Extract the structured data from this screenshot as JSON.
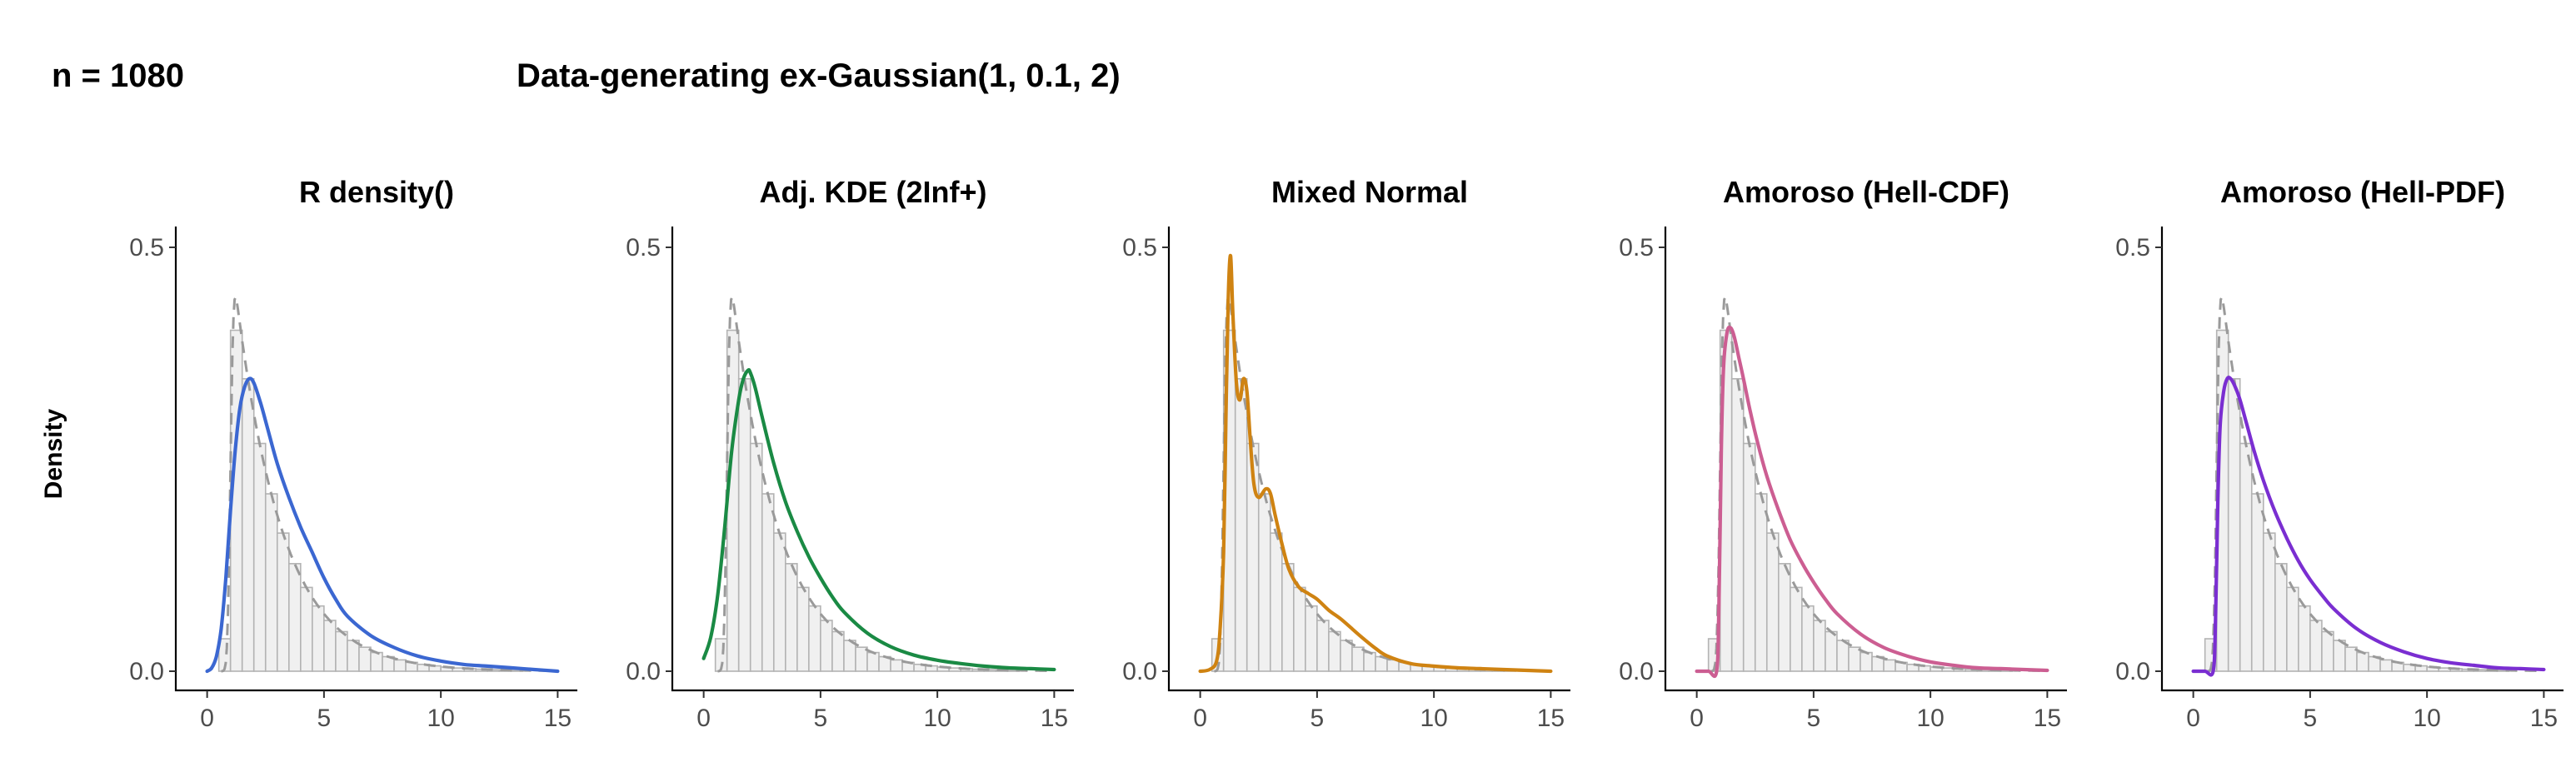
{
  "header": {
    "sample_size": "n = 1080",
    "generating_model": "Data-generating ex-Gaussian(1, 0.1, 2)"
  },
  "ylabel": "Density",
  "chart_data": [
    {
      "type": "line",
      "title": "R density()",
      "color": "#3b67d1",
      "method": "kde",
      "xlim": [
        0,
        15
      ],
      "ylim": [
        0,
        0.5
      ],
      "xticks": [
        "0",
        "5",
        "10",
        "15"
      ],
      "yticks": [
        "0.0",
        "0.5"
      ],
      "series": [
        {
          "name": "true ex-Gaussian density",
          "style": "dashed"
        },
        {
          "name": "estimate",
          "style": "solid",
          "x": [
            0,
            0.2,
            0.4,
            0.6,
            0.8,
            1.0,
            1.2,
            1.4,
            1.6,
            1.8,
            2.0,
            2.3,
            2.6,
            3.0,
            3.5,
            4.0,
            4.5,
            5.0,
            5.5,
            6.0,
            7.0,
            8.0,
            9.0,
            10.0,
            11.0,
            12.0,
            13.0,
            14.0,
            15.0
          ],
          "y": [
            0,
            0.004,
            0.018,
            0.05,
            0.11,
            0.19,
            0.26,
            0.31,
            0.335,
            0.345,
            0.34,
            0.315,
            0.285,
            0.245,
            0.205,
            0.17,
            0.14,
            0.11,
            0.085,
            0.065,
            0.042,
            0.028,
            0.018,
            0.012,
            0.008,
            0.006,
            0.004,
            0.002,
            0.0
          ]
        }
      ]
    },
    {
      "type": "line",
      "title": "Adj. KDE (2Inf+)",
      "color": "#1a8a44",
      "method": "kde",
      "xlim": [
        0,
        15
      ],
      "ylim": [
        0,
        0.5
      ],
      "xticks": [
        "0",
        "5",
        "10",
        "15"
      ],
      "yticks": [
        "0.0",
        "0.5"
      ],
      "series": [
        {
          "name": "true ex-Gaussian density",
          "style": "dashed"
        },
        {
          "name": "estimate",
          "style": "solid",
          "x": [
            0,
            0.3,
            0.6,
            0.9,
            1.2,
            1.5,
            1.7,
            1.9,
            2.0,
            2.2,
            2.5,
            3.0,
            3.5,
            4.0,
            4.5,
            5.0,
            5.5,
            6.0,
            7.0,
            8.0,
            9.0,
            10.0,
            11.0,
            12.0,
            13.0,
            14.0,
            15.0
          ],
          "y": [
            0.015,
            0.04,
            0.09,
            0.17,
            0.26,
            0.32,
            0.345,
            0.355,
            0.352,
            0.335,
            0.3,
            0.245,
            0.2,
            0.165,
            0.135,
            0.11,
            0.088,
            0.07,
            0.045,
            0.029,
            0.019,
            0.013,
            0.009,
            0.006,
            0.004,
            0.003,
            0.002
          ]
        }
      ]
    },
    {
      "type": "line",
      "title": "Mixed Normal",
      "color": "#cf8312",
      "method": "mixture",
      "xlim": [
        0,
        15
      ],
      "ylim": [
        0,
        0.5
      ],
      "xticks": [
        "0",
        "5",
        "10",
        "15"
      ],
      "yticks": [
        "0.0",
        "0.5"
      ],
      "series": [
        {
          "name": "true ex-Gaussian density",
          "style": "dashed"
        },
        {
          "name": "estimate",
          "style": "solid",
          "x": [
            0,
            0.4,
            0.7,
            0.85,
            1.0,
            1.1,
            1.2,
            1.3,
            1.4,
            1.55,
            1.7,
            1.85,
            2.0,
            2.15,
            2.3,
            2.5,
            2.8,
            3.0,
            3.2,
            3.5,
            3.8,
            4.2,
            4.6,
            5.0,
            5.5,
            6.0,
            6.5,
            7.0,
            7.5,
            8.0,
            9.0,
            10.0,
            11.0,
            12.0,
            13.0,
            14.0,
            15.0
          ],
          "y": [
            0.0,
            0.002,
            0.012,
            0.05,
            0.14,
            0.3,
            0.44,
            0.49,
            0.42,
            0.34,
            0.32,
            0.345,
            0.33,
            0.27,
            0.22,
            0.205,
            0.215,
            0.21,
            0.185,
            0.15,
            0.12,
            0.1,
            0.092,
            0.085,
            0.072,
            0.062,
            0.05,
            0.038,
            0.027,
            0.018,
            0.009,
            0.006,
            0.004,
            0.003,
            0.002,
            0.001,
            0.0
          ]
        }
      ]
    },
    {
      "type": "line",
      "title": "Amoroso (Hell-CDF)",
      "color": "#cc5e92",
      "method": "amoroso",
      "xlim": [
        0,
        15
      ],
      "ylim": [
        0,
        0.5
      ],
      "xticks": [
        "0",
        "5",
        "10",
        "15"
      ],
      "yticks": [
        "0.0",
        "0.5"
      ],
      "series": [
        {
          "name": "true ex-Gaussian density",
          "style": "dashed"
        },
        {
          "name": "estimate",
          "style": "solid",
          "x": [
            0,
            0.5,
            0.85,
            0.95,
            1.05,
            1.15,
            1.3,
            1.45,
            1.6,
            1.8,
            2.0,
            2.3,
            2.6,
            3.0,
            3.5,
            4.0,
            4.5,
            5.0,
            5.5,
            6.0,
            7.0,
            8.0,
            9.0,
            10.0,
            11.0,
            12.0,
            13.0,
            14.0,
            15.0
          ],
          "y": [
            0,
            0,
            0,
            0.08,
            0.26,
            0.36,
            0.4,
            0.405,
            0.395,
            0.37,
            0.345,
            0.305,
            0.27,
            0.23,
            0.19,
            0.155,
            0.128,
            0.105,
            0.085,
            0.068,
            0.044,
            0.028,
            0.018,
            0.011,
            0.007,
            0.004,
            0.003,
            0.002,
            0.001
          ]
        }
      ]
    },
    {
      "type": "line",
      "title": "Amoroso (Hell-PDF)",
      "color": "#7a2ed1",
      "method": "amoroso",
      "xlim": [
        0,
        15
      ],
      "ylim": [
        0,
        0.5
      ],
      "xticks": [
        "0",
        "5",
        "10",
        "15"
      ],
      "yticks": [
        "0.0",
        "0.5"
      ],
      "series": [
        {
          "name": "true ex-Gaussian density",
          "style": "dashed"
        },
        {
          "name": "estimate",
          "style": "solid",
          "x": [
            0,
            0.5,
            0.85,
            0.95,
            1.05,
            1.15,
            1.3,
            1.45,
            1.6,
            1.8,
            2.0,
            2.3,
            2.6,
            3.0,
            3.5,
            4.0,
            4.5,
            5.0,
            5.5,
            6.0,
            7.0,
            8.0,
            9.0,
            10.0,
            11.0,
            12.0,
            13.0,
            14.0,
            15.0
          ],
          "y": [
            0,
            0,
            0,
            0.06,
            0.2,
            0.29,
            0.33,
            0.345,
            0.345,
            0.335,
            0.32,
            0.29,
            0.26,
            0.225,
            0.188,
            0.157,
            0.13,
            0.108,
            0.09,
            0.074,
            0.05,
            0.034,
            0.023,
            0.015,
            0.01,
            0.007,
            0.004,
            0.003,
            0.002
          ]
        }
      ]
    }
  ]
}
